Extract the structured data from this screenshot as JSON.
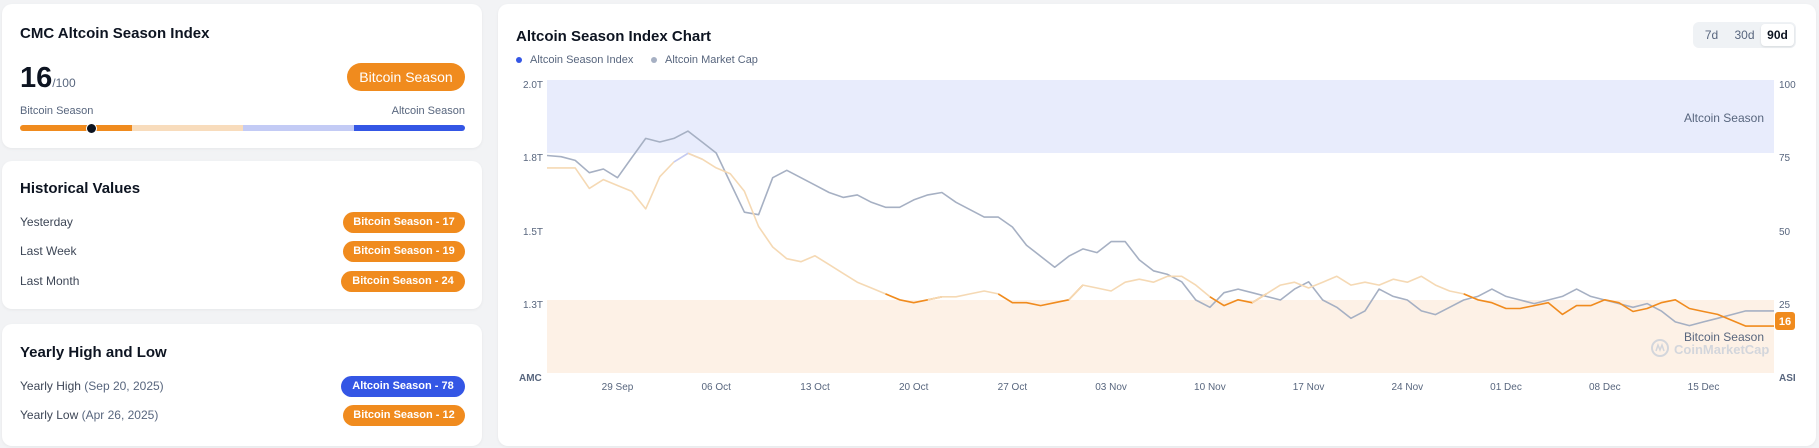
{
  "index_card": {
    "title": "CMC Altcoin Season Index",
    "value": "16",
    "max": "/100",
    "status_badge": "Bitcoin Season",
    "scale_left": "Bitcoin Season",
    "scale_right": "Altcoin Season",
    "level": 0.16,
    "colors": {
      "bitcoin": "#f08b1e",
      "bitcoin_light": "#f8dcbc",
      "altcoin_light": "#c3cbf5",
      "altcoin": "#3456e5"
    }
  },
  "historical": {
    "title": "Historical Values",
    "rows": [
      {
        "label": "Yesterday",
        "badge": "Bitcoin Season - 17"
      },
      {
        "label": "Last Week",
        "badge": "Bitcoin Season - 19"
      },
      {
        "label": "Last Month",
        "badge": "Bitcoin Season - 24"
      }
    ]
  },
  "yearly": {
    "title": "Yearly High and Low",
    "high": {
      "label": "Yearly High",
      "date": "(Sep 20, 2025)",
      "badge": "Altcoin Season - 78",
      "color": "blue"
    },
    "low": {
      "label": "Yearly Low",
      "date": "(Apr 26, 2025)",
      "badge": "Bitcoin Season - 12",
      "color": "orange"
    }
  },
  "chart_panel": {
    "title": "Altcoin Season Index Chart",
    "ranges": [
      "7d",
      "30d",
      "90d"
    ],
    "active_range": "90d"
  },
  "chart_data": {
    "type": "line",
    "legend": [
      "Altcoin Season Index",
      "Altcoin Market Cap"
    ],
    "legend_colors": [
      "#3456e5",
      "#a6b0c3"
    ],
    "x_ticks": [
      "29 Sep",
      "06 Oct",
      "13 Oct",
      "20 Oct",
      "27 Oct",
      "03 Nov",
      "10 Nov",
      "17 Nov",
      "24 Nov",
      "01 Dec",
      "08 Dec",
      "15 Dec"
    ],
    "x_range": [
      -5,
      82
    ],
    "left_axis": {
      "label": "AMC",
      "ticks": [
        "2.0T",
        "1.8T",
        "1.5T",
        "1.3T"
      ]
    },
    "right_axis": {
      "label": "ASI",
      "ticks": [
        "100",
        "75",
        "50",
        "25"
      ],
      "ylim": [
        0,
        100
      ]
    },
    "zones": [
      {
        "label": "Altcoin Season",
        "from": 75,
        "to": 100,
        "color": "#e8ecfc"
      },
      {
        "label": "Bitcoin Season",
        "from": 0,
        "to": 25,
        "color": "#fdf1e6"
      }
    ],
    "watermark": "CoinMarketCap",
    "current_value": "16",
    "series": [
      {
        "name": "Altcoin Season Index",
        "axis": "right",
        "values": [
          [
            -5,
            70
          ],
          [
            -3,
            70
          ],
          [
            -2,
            63
          ],
          [
            -1,
            66
          ],
          [
            0,
            64
          ],
          [
            1,
            62
          ],
          [
            2,
            56
          ],
          [
            3,
            67
          ],
          [
            4,
            72
          ],
          [
            5,
            75
          ],
          [
            6,
            73
          ],
          [
            7,
            70
          ],
          [
            8,
            68
          ],
          [
            9,
            62
          ],
          [
            10,
            50
          ],
          [
            11,
            43
          ],
          [
            12,
            39
          ],
          [
            13,
            38
          ],
          [
            14,
            40
          ],
          [
            15,
            37
          ],
          [
            16,
            34
          ],
          [
            17,
            31
          ],
          [
            18,
            29
          ],
          [
            19,
            27
          ],
          [
            20,
            25
          ],
          [
            21,
            24
          ],
          [
            22,
            25
          ],
          [
            23,
            26
          ],
          [
            24,
            26
          ],
          [
            25,
            27
          ],
          [
            26,
            28
          ],
          [
            27,
            27
          ],
          [
            28,
            24
          ],
          [
            29,
            24
          ],
          [
            30,
            23
          ],
          [
            31,
            24
          ],
          [
            32,
            25
          ],
          [
            33,
            30
          ],
          [
            34,
            29
          ],
          [
            35,
            28
          ],
          [
            36,
            31
          ],
          [
            37,
            32
          ],
          [
            38,
            31
          ],
          [
            39,
            33
          ],
          [
            40,
            33
          ],
          [
            41,
            30
          ],
          [
            42,
            26
          ],
          [
            43,
            23
          ],
          [
            44,
            25
          ],
          [
            45,
            24
          ],
          [
            46,
            27
          ],
          [
            47,
            30
          ],
          [
            48,
            31
          ],
          [
            49,
            29
          ],
          [
            50,
            31
          ],
          [
            51,
            33
          ],
          [
            52,
            30
          ],
          [
            53,
            31
          ],
          [
            54,
            30
          ],
          [
            55,
            32
          ],
          [
            56,
            31
          ],
          [
            57,
            33
          ],
          [
            58,
            30
          ],
          [
            59,
            28
          ],
          [
            60,
            27
          ],
          [
            61,
            25
          ],
          [
            62,
            24
          ],
          [
            63,
            22
          ],
          [
            64,
            22
          ],
          [
            65,
            23
          ],
          [
            66,
            24
          ],
          [
            67,
            20
          ],
          [
            68,
            23
          ],
          [
            69,
            23
          ],
          [
            70,
            25
          ],
          [
            71,
            24
          ],
          [
            72,
            21
          ],
          [
            73,
            22
          ],
          [
            74,
            24
          ],
          [
            75,
            25
          ],
          [
            76,
            22
          ],
          [
            77,
            21
          ],
          [
            78,
            20
          ],
          [
            79,
            18
          ],
          [
            80,
            16
          ],
          [
            81,
            16
          ],
          [
            82,
            16
          ]
        ]
      },
      {
        "name": "Altcoin Market Cap",
        "axis": "left",
        "values": [
          [
            -5,
            1.79
          ],
          [
            -4,
            1.785
          ],
          [
            -3,
            1.77
          ],
          [
            -2,
            1.72
          ],
          [
            -1,
            1.735
          ],
          [
            0,
            1.7
          ],
          [
            1,
            1.78
          ],
          [
            2,
            1.84
          ],
          [
            3,
            1.83
          ],
          [
            4,
            1.84
          ],
          [
            5,
            1.86
          ],
          [
            6,
            1.83
          ],
          [
            7,
            1.8
          ],
          [
            8,
            1.68
          ],
          [
            9,
            1.56
          ],
          [
            10,
            1.55
          ],
          [
            11,
            1.7
          ],
          [
            12,
            1.73
          ],
          [
            13,
            1.7
          ],
          [
            14,
            1.67
          ],
          [
            15,
            1.64
          ],
          [
            16,
            1.62
          ],
          [
            17,
            1.63
          ],
          [
            18,
            1.6
          ],
          [
            19,
            1.58
          ],
          [
            20,
            1.58
          ],
          [
            21,
            1.61
          ],
          [
            22,
            1.63
          ],
          [
            23,
            1.64
          ],
          [
            24,
            1.6
          ],
          [
            25,
            1.57
          ],
          [
            26,
            1.54
          ],
          [
            27,
            1.54
          ],
          [
            28,
            1.5
          ],
          [
            29,
            1.45
          ],
          [
            30,
            1.42
          ],
          [
            31,
            1.39
          ],
          [
            32,
            1.42
          ],
          [
            33,
            1.44
          ],
          [
            34,
            1.43
          ],
          [
            35,
            1.46
          ],
          [
            36,
            1.46
          ],
          [
            37,
            1.41
          ],
          [
            38,
            1.38
          ],
          [
            39,
            1.37
          ],
          [
            40,
            1.35
          ],
          [
            41,
            1.3
          ],
          [
            42,
            1.28
          ],
          [
            43,
            1.32
          ],
          [
            44,
            1.33
          ],
          [
            45,
            1.32
          ],
          [
            46,
            1.31
          ],
          [
            47,
            1.3
          ],
          [
            48,
            1.33
          ],
          [
            49,
            1.35
          ],
          [
            50,
            1.3
          ],
          [
            51,
            1.28
          ],
          [
            52,
            1.25
          ],
          [
            53,
            1.27
          ],
          [
            54,
            1.33
          ],
          [
            55,
            1.31
          ],
          [
            56,
            1.3
          ],
          [
            57,
            1.27
          ],
          [
            58,
            1.26
          ],
          [
            59,
            1.28
          ],
          [
            60,
            1.3
          ],
          [
            61,
            1.31
          ],
          [
            62,
            1.33
          ],
          [
            63,
            1.31
          ],
          [
            64,
            1.3
          ],
          [
            65,
            1.29
          ],
          [
            66,
            1.3
          ],
          [
            67,
            1.31
          ],
          [
            68,
            1.33
          ],
          [
            69,
            1.31
          ],
          [
            70,
            1.3
          ],
          [
            71,
            1.29
          ],
          [
            72,
            1.28
          ],
          [
            73,
            1.29
          ],
          [
            74,
            1.27
          ],
          [
            75,
            1.24
          ],
          [
            76,
            1.23
          ],
          [
            77,
            1.24
          ],
          [
            78,
            1.25
          ],
          [
            79,
            1.26
          ],
          [
            80,
            1.27
          ],
          [
            81,
            1.27
          ],
          [
            82,
            1.27
          ]
        ]
      }
    ]
  }
}
